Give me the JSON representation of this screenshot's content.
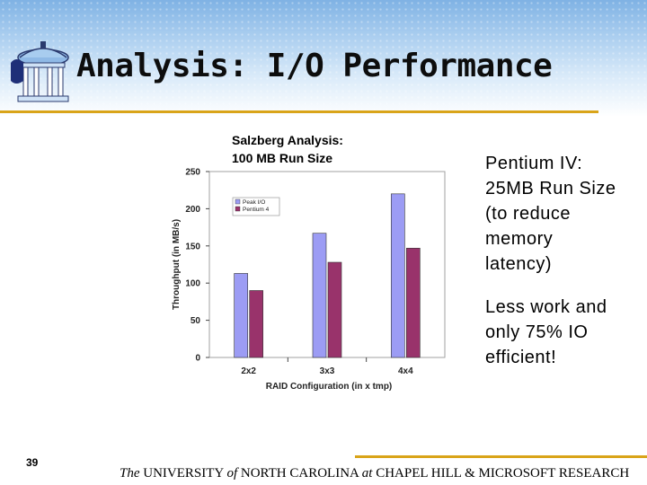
{
  "slide": {
    "title": "Analysis: I/O Performance",
    "chart_caption_line1": "Salzberg Analysis:",
    "chart_caption_line2": "100 MB Run Size",
    "side_text": {
      "para1_lines": [
        "Pentium IV:",
        "25MB  Run Size",
        "(to reduce",
        "memory",
        "latency)"
      ],
      "para2_lines": [
        "Less work and",
        "only 75%  IO",
        "efficient!"
      ]
    },
    "slide_number": "39",
    "footer": {
      "the": "The",
      "university": " UNIVERSITY ",
      "of": "of",
      "nc": " NORTH CAROLINA ",
      "at": "at",
      "rest": " CHAPEL HILL  & MICROSOFT RESEARCH"
    }
  },
  "colors": {
    "peak_io": "#9c9cf4",
    "pentium4": "#99336b",
    "plot_bg": "#ffffff",
    "accent_rule": "#d9a419"
  },
  "chart_data": {
    "type": "bar",
    "categories": [
      "2x2",
      "3x3",
      "4x4"
    ],
    "series": [
      {
        "name": "Peak I/O",
        "values": [
          113,
          167,
          220
        ]
      },
      {
        "name": "Pentium 4",
        "values": [
          90,
          128,
          147
        ]
      }
    ],
    "xlabel": "RAID Configuration (in x tmp)",
    "ylabel": "Throughput (in MB/s)",
    "ylim": [
      0,
      250
    ],
    "yticks": [
      0,
      50,
      100,
      150,
      200,
      250
    ],
    "grid": false,
    "legend": "top-left"
  }
}
